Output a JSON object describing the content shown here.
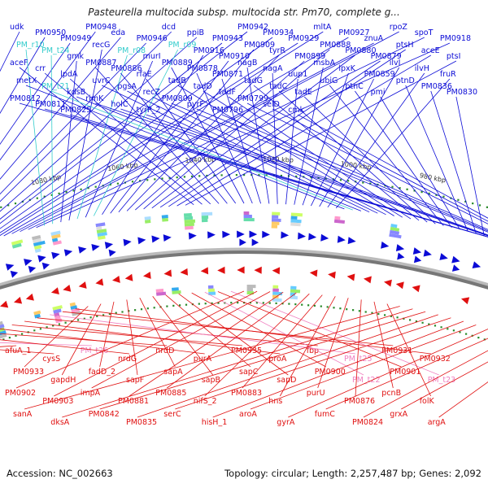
{
  "title": "Pasteurella multocida subsp. multocida str. Pm70, complete g...",
  "footer": {
    "accession": "Accession: NC_002663",
    "topology": "Topology: circular; Length: 2,257,487 bp; Genes: 2,092"
  },
  "colors": {
    "forward_gene": "#0b0bd6",
    "reverse_gene": "#e01010",
    "trna": "#33cccc",
    "reverse_trna": "#f080c0",
    "tick": "#2a8a2a",
    "backbone": "#777777"
  },
  "scale_labels": [
    "1120 kbp",
    "1100 kbp",
    "1080 kbp",
    "1060 kbp",
    "1040 kbp",
    "1020 kbp",
    "1000 kbp",
    "980 kbp",
    "960 kbp",
    "940 kbp"
  ],
  "forward_labels": [
    {
      "text": "udk",
      "kind": "gene"
    },
    {
      "text": "PM0950",
      "kind": "gene"
    },
    {
      "text": "PM0949",
      "kind": "gene"
    },
    {
      "text": "PM0948",
      "kind": "gene"
    },
    {
      "text": "eda",
      "kind": "gene"
    },
    {
      "text": "PM0946",
      "kind": "gene"
    },
    {
      "text": "dcd",
      "kind": "gene"
    },
    {
      "text": "ppiB",
      "kind": "gene"
    },
    {
      "text": "PM0943",
      "kind": "gene"
    },
    {
      "text": "PM0942",
      "kind": "gene"
    },
    {
      "text": "PM0934",
      "kind": "gene"
    },
    {
      "text": "PM0929",
      "kind": "gene"
    },
    {
      "text": "mltA",
      "kind": "gene"
    },
    {
      "text": "PM0927",
      "kind": "gene"
    },
    {
      "text": "znuA",
      "kind": "gene"
    },
    {
      "text": "rpoZ",
      "kind": "gene"
    },
    {
      "text": "spoT",
      "kind": "gene"
    },
    {
      "text": "PM0918",
      "kind": "gene"
    },
    {
      "text": "PM_r10",
      "kind": "trna"
    },
    {
      "text": "PM_t24",
      "kind": "trna"
    },
    {
      "text": "gmk",
      "kind": "gene"
    },
    {
      "text": "recG",
      "kind": "gene"
    },
    {
      "text": "PM_r08",
      "kind": "trna"
    },
    {
      "text": "murI",
      "kind": "gene"
    },
    {
      "text": "PM_r09",
      "kind": "trna"
    },
    {
      "text": "PM0916",
      "kind": "gene"
    },
    {
      "text": "PM0910",
      "kind": "gene"
    },
    {
      "text": "PM0909",
      "kind": "gene"
    },
    {
      "text": "tyrR",
      "kind": "gene"
    },
    {
      "text": "PM0899",
      "kind": "gene"
    },
    {
      "text": "PM0888",
      "kind": "gene"
    },
    {
      "text": "PM0880",
      "kind": "gene"
    },
    {
      "text": "PM0879",
      "kind": "gene"
    },
    {
      "text": "ptsH",
      "kind": "gene"
    },
    {
      "text": "aceE",
      "kind": "gene"
    },
    {
      "text": "ptsI",
      "kind": "gene"
    },
    {
      "text": "aceF",
      "kind": "gene"
    },
    {
      "text": "crr",
      "kind": "gene"
    },
    {
      "text": "lpdA",
      "kind": "gene"
    },
    {
      "text": "PM0887",
      "kind": "gene"
    },
    {
      "text": "PM0886",
      "kind": "gene"
    },
    {
      "text": "rfaE",
      "kind": "gene"
    },
    {
      "text": "PM0889",
      "kind": "gene"
    },
    {
      "text": "PM0878",
      "kind": "gene"
    },
    {
      "text": "PM0871",
      "kind": "gene"
    },
    {
      "text": "nagB",
      "kind": "gene"
    },
    {
      "text": "nagA",
      "kind": "gene"
    },
    {
      "text": "uup1",
      "kind": "gene"
    },
    {
      "text": "msbA",
      "kind": "gene"
    },
    {
      "text": "lpxK",
      "kind": "gene"
    },
    {
      "text": "PM0859",
      "kind": "gene"
    },
    {
      "text": "ilvI",
      "kind": "gene"
    },
    {
      "text": "ilvH",
      "kind": "gene"
    },
    {
      "text": "fruR",
      "kind": "gene"
    },
    {
      "text": "metX",
      "kind": "gene"
    },
    {
      "text": "PM_t21",
      "kind": "trna"
    },
    {
      "text": "kdsB",
      "kind": "gene"
    },
    {
      "text": "uvrC",
      "kind": "gene"
    },
    {
      "text": "pgsA",
      "kind": "gene"
    },
    {
      "text": "recZ",
      "kind": "gene"
    },
    {
      "text": "tadB",
      "kind": "gene"
    },
    {
      "text": "tadD",
      "kind": "gene"
    },
    {
      "text": "tadF",
      "kind": "gene"
    },
    {
      "text": "tadG",
      "kind": "gene"
    },
    {
      "text": "tadC",
      "kind": "gene"
    },
    {
      "text": "tadE",
      "kind": "gene"
    },
    {
      "text": "ubiG",
      "kind": "gene"
    },
    {
      "text": "ptnC",
      "kind": "gene"
    },
    {
      "text": "pmi",
      "kind": "gene"
    },
    {
      "text": "ptnD",
      "kind": "gene"
    },
    {
      "text": "PM0836",
      "kind": "gene"
    },
    {
      "text": "PM0830",
      "kind": "gene"
    },
    {
      "text": "PM0812",
      "kind": "gene"
    },
    {
      "text": "PM0811",
      "kind": "gene"
    },
    {
      "text": "PM0825",
      "kind": "gene"
    },
    {
      "text": "rimK",
      "kind": "gene"
    },
    {
      "text": "holC",
      "kind": "gene"
    },
    {
      "text": "tyrP_2",
      "kind": "gene"
    },
    {
      "text": "PM0809",
      "kind": "gene"
    },
    {
      "text": "pyrF",
      "kind": "gene"
    },
    {
      "text": "PM0796",
      "kind": "gene"
    },
    {
      "text": "PM0799",
      "kind": "gene"
    },
    {
      "text": "selD",
      "kind": "gene"
    },
    {
      "text": "cmk",
      "kind": "gene"
    }
  ],
  "reverse_labels": [
    {
      "text": "afuA_1",
      "kind": "gene"
    },
    {
      "text": "cysS",
      "kind": "gene"
    },
    {
      "text": "PM_t26",
      "kind": "trna"
    },
    {
      "text": "nrdG",
      "kind": "gene"
    },
    {
      "text": "nrdD",
      "kind": "gene"
    },
    {
      "text": "purA",
      "kind": "gene"
    },
    {
      "text": "PM0935",
      "kind": "gene"
    },
    {
      "text": "proA",
      "kind": "gene"
    },
    {
      "text": "fbp",
      "kind": "gene"
    },
    {
      "text": "PM_t25",
      "kind": "trna"
    },
    {
      "text": "PM0931",
      "kind": "gene"
    },
    {
      "text": "PM0932",
      "kind": "gene"
    },
    {
      "text": "PM0933",
      "kind": "gene"
    },
    {
      "text": "gapdH",
      "kind": "gene"
    },
    {
      "text": "fadD_2",
      "kind": "gene"
    },
    {
      "text": "sapF",
      "kind": "gene"
    },
    {
      "text": "sapA",
      "kind": "gene"
    },
    {
      "text": "sapB",
      "kind": "gene"
    },
    {
      "text": "sapC",
      "kind": "gene"
    },
    {
      "text": "sapD",
      "kind": "gene"
    },
    {
      "text": "PM0900",
      "kind": "gene"
    },
    {
      "text": "PM_t22",
      "kind": "trna"
    },
    {
      "text": "PM0901",
      "kind": "gene"
    },
    {
      "text": "PM_t23",
      "kind": "trna"
    },
    {
      "text": "PM0902",
      "kind": "gene"
    },
    {
      "text": "PM0903",
      "kind": "gene"
    },
    {
      "text": "impA",
      "kind": "gene"
    },
    {
      "text": "PM0881",
      "kind": "gene"
    },
    {
      "text": "PM0885",
      "kind": "gene"
    },
    {
      "text": "nifS_2",
      "kind": "gene"
    },
    {
      "text": "PM0883",
      "kind": "gene"
    },
    {
      "text": "hns",
      "kind": "gene"
    },
    {
      "text": "purU",
      "kind": "gene"
    },
    {
      "text": "PM0876",
      "kind": "gene"
    },
    {
      "text": "pcnB",
      "kind": "gene"
    },
    {
      "text": "folK",
      "kind": "gene"
    },
    {
      "text": "sanA",
      "kind": "gene"
    },
    {
      "text": "dksA",
      "kind": "gene"
    },
    {
      "text": "PM0842",
      "kind": "gene"
    },
    {
      "text": "PM0835",
      "kind": "gene"
    },
    {
      "text": "serC",
      "kind": "gene"
    },
    {
      "text": "hisH_1",
      "kind": "gene"
    },
    {
      "text": "aroA",
      "kind": "gene"
    },
    {
      "text": "gyrA",
      "kind": "gene"
    },
    {
      "text": "fumC",
      "kind": "gene"
    },
    {
      "text": "PM0824",
      "kind": "gene"
    },
    {
      "text": "grxA",
      "kind": "gene"
    },
    {
      "text": "argA",
      "kind": "gene"
    }
  ]
}
